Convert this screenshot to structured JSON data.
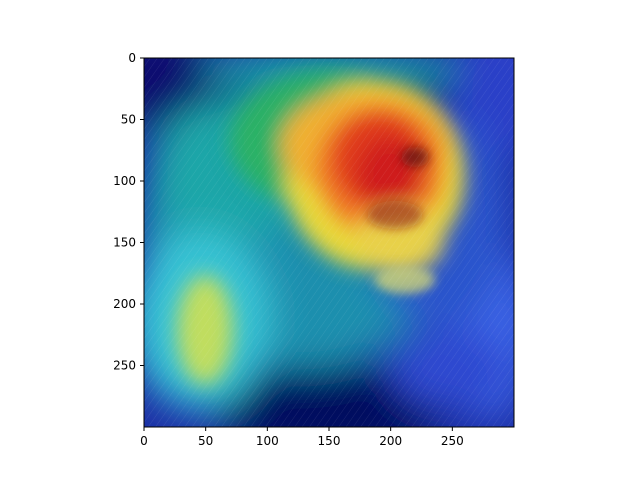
{
  "image": {
    "description_icon": "heatmap-overlay-dog-photo",
    "colormap": "jet",
    "colors": {
      "background_dark": "#0a1a8a",
      "low": "#1f3fd8",
      "mid_low": "#1fb5c8",
      "mid": "#2fae6a",
      "mid_high": "#f5e23a",
      "high": "#e83a1f",
      "peak": "#d71f1f"
    }
  },
  "axes": {
    "x_ticks": [
      "0",
      "50",
      "100",
      "150",
      "200",
      "250"
    ],
    "y_ticks": [
      "0",
      "50",
      "100",
      "150",
      "200",
      "250"
    ],
    "xlim": [
      0,
      300
    ],
    "ylim": [
      300,
      0
    ]
  }
}
